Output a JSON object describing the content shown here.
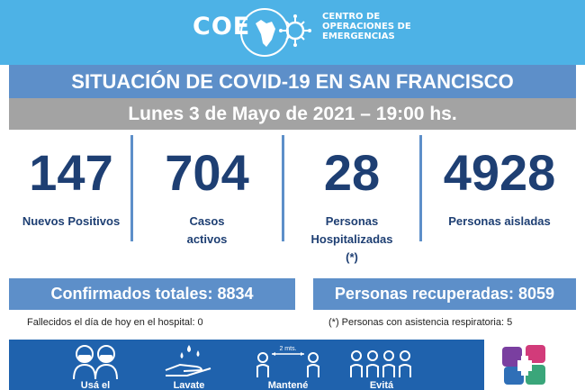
{
  "header": {
    "logo": "COE",
    "org_line1": "CENTRO DE",
    "org_line2": "OPERACIONES DE",
    "org_line3": "EMERGENCIAS"
  },
  "title": "SITUACIÓN DE COVID-19 EN SAN FRANCISCO",
  "date": "Lunes 3 de Mayo de 2021 – 19:00 hs.",
  "stats": [
    {
      "value": "147",
      "label": "Nuevos Positivos"
    },
    {
      "value": "704",
      "label": "Casos\nactivos"
    },
    {
      "value": "28",
      "label": "Personas\nHospitalizadas\n(*)"
    },
    {
      "value": "4928",
      "label": "Personas aisladas"
    }
  ],
  "totals": {
    "confirmed": "Confirmados totales: 8834",
    "recovered": "Personas recuperadas: 8059"
  },
  "notes": {
    "deaths": "Fallecidos el día de hoy en el hospital:  0",
    "respiratory": "(*) Personas con asistencia respiratoria: 5"
  },
  "prevention": {
    "items": [
      "Usá el",
      "Lavate",
      "Mantené",
      "Evitá"
    ],
    "distance": "2 mts."
  },
  "colors": {
    "header": "#4db2e6",
    "title_bar": "#5d8fc9",
    "date_bar": "#a3a3a3",
    "numbers": "#1e3f73",
    "bottom_band": "#1f62ad"
  }
}
